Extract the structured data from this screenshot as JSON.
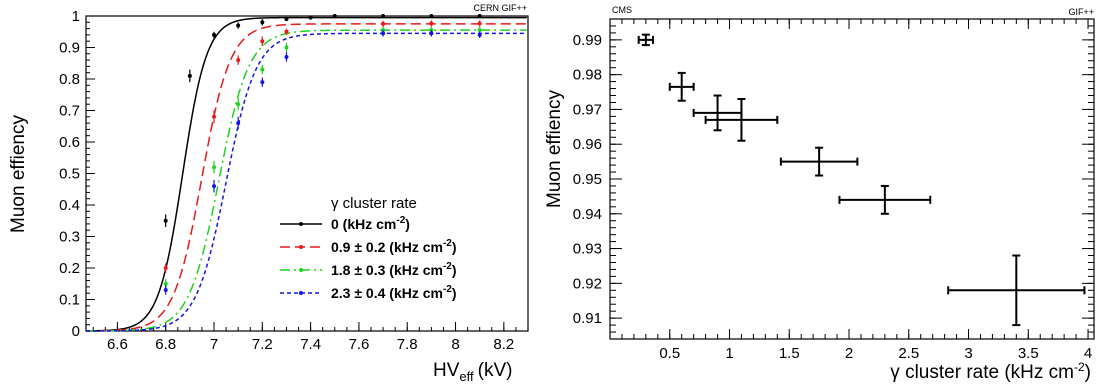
{
  "chart_data": [
    {
      "type": "line",
      "corner_label": "CERN GIF++",
      "xlabel_main": "HV",
      "xlabel_sub": "eff",
      "xlabel_unit": "(kV)",
      "ylabel": "Muon effiency",
      "xlim": [
        6.47,
        8.3
      ],
      "ylim": [
        0,
        1
      ],
      "xticks": [
        "6.6",
        "6.8",
        "7",
        "7.2",
        "7.4",
        "7.6",
        "7.8",
        "8",
        "8.2"
      ],
      "yticks": [
        "0",
        "0.1",
        "0.2",
        "0.3",
        "0.4",
        "0.5",
        "0.6",
        "0.7",
        "0.8",
        "0.9",
        "1"
      ],
      "grid": false,
      "legend": {
        "placement": "bottom-right",
        "title": "γ cluster rate",
        "entries": [
          {
            "text": "0 (kHz cm",
            "sup": "-2",
            "close": ")"
          },
          {
            "text": "0.9 ± 0.2 (kHz cm",
            "sup": "-2",
            "close": ")"
          },
          {
            "text": "1.8 ± 0.3 (kHz cm",
            "sup": "-2",
            "close": ")"
          },
          {
            "text": "2.3 ± 0.4 (kHz cm",
            "sup": "-2",
            "close": ")"
          }
        ]
      },
      "series": [
        {
          "color": "#000000",
          "dash": "",
          "plateau": 0.995,
          "hv50": 6.87,
          "lambda": 20,
          "x": [
            6.8,
            6.9,
            7.0,
            7.1,
            7.2,
            7.3,
            7.4,
            7.5,
            7.7,
            7.9,
            8.1
          ],
          "y": [
            0.35,
            0.81,
            0.94,
            0.97,
            0.98,
            0.99,
            0.995,
            1.0,
            1.0,
            1.0,
            1.0
          ],
          "err": [
            0.02,
            0.02,
            0.01,
            0.01,
            0.01,
            0.005,
            0.005,
            0.005,
            0.005,
            0.005,
            0.005
          ]
        },
        {
          "color": "#e8191a",
          "dash": "10 5",
          "plateau": 0.975,
          "hv50": 6.95,
          "lambda": 17,
          "x": [
            6.8,
            7.0,
            7.1,
            7.2,
            7.3,
            7.7,
            7.9,
            8.1
          ],
          "y": [
            0.2,
            0.68,
            0.86,
            0.92,
            0.95,
            0.975,
            0.976,
            0.976
          ],
          "err": [
            0.015,
            0.02,
            0.015,
            0.015,
            0.01,
            0.01,
            0.01,
            0.01
          ]
        },
        {
          "color": "#1fd21f",
          "dash": "10 4 2 4",
          "plateau": 0.955,
          "hv50": 7.02,
          "lambda": 16,
          "x": [
            6.8,
            7.0,
            7.1,
            7.2,
            7.3,
            7.7,
            7.9,
            8.1
          ],
          "y": [
            0.15,
            0.52,
            0.72,
            0.83,
            0.9,
            0.955,
            0.955,
            0.955
          ],
          "err": [
            0.015,
            0.02,
            0.02,
            0.015,
            0.015,
            0.01,
            0.01,
            0.01
          ]
        },
        {
          "color": "#1515e6",
          "dash": "4 3",
          "plateau": 0.945,
          "hv50": 7.05,
          "lambda": 16,
          "x": [
            6.8,
            7.0,
            7.1,
            7.2,
            7.3,
            7.7,
            7.9,
            8.1
          ],
          "y": [
            0.13,
            0.46,
            0.66,
            0.79,
            0.87,
            0.945,
            0.945,
            0.94
          ],
          "err": [
            0.015,
            0.02,
            0.02,
            0.015,
            0.015,
            0.01,
            0.01,
            0.01
          ]
        }
      ]
    },
    {
      "type": "scatter",
      "corner_left": "CMS",
      "corner_right": "GIF++",
      "xlabel_main": "γ cluster rate (kHz cm",
      "xlabel_sup": "-2",
      "xlabel_close": ")",
      "ylabel": "Muon effiency",
      "xlim": [
        0,
        4.05
      ],
      "ylim": [
        0.904,
        0.996
      ],
      "xticks": [
        {
          "v": 0.5,
          "label": "0.5"
        },
        {
          "v": 1,
          "label": "1"
        },
        {
          "v": 1.5,
          "label": "1.5"
        },
        {
          "v": 2,
          "label": "2"
        },
        {
          "v": 2.5,
          "label": "2.5"
        },
        {
          "v": 3,
          "label": "3"
        },
        {
          "v": 3.5,
          "label": "3.5"
        },
        {
          "v": 4,
          "label": "4"
        }
      ],
      "yticks": [
        {
          "v": 0.91,
          "label": "0.91"
        },
        {
          "v": 0.92,
          "label": "0.92"
        },
        {
          "v": 0.93,
          "label": "0.93"
        },
        {
          "v": 0.94,
          "label": "0.94"
        },
        {
          "v": 0.95,
          "label": "0.95"
        },
        {
          "v": 0.96,
          "label": "0.96"
        },
        {
          "v": 0.97,
          "label": "0.97"
        },
        {
          "v": 0.98,
          "label": "0.98"
        },
        {
          "v": 0.99,
          "label": "0.99"
        }
      ],
      "grid": false,
      "points": [
        {
          "x": 0.3,
          "y": 0.99,
          "xerr": 0.06,
          "yerr": 0.0015
        },
        {
          "x": 0.6,
          "y": 0.9765,
          "xerr": 0.1,
          "yerr": 0.004
        },
        {
          "x": 0.9,
          "y": 0.969,
          "xerr": 0.2,
          "yerr": 0.005
        },
        {
          "x": 1.1,
          "y": 0.967,
          "xerr": 0.3,
          "yerr": 0.006
        },
        {
          "x": 1.75,
          "y": 0.955,
          "xerr": 0.32,
          "yerr": 0.004
        },
        {
          "x": 2.3,
          "y": 0.944,
          "xerr": 0.38,
          "yerr": 0.004
        },
        {
          "x": 3.4,
          "y": 0.918,
          "xerr": 0.57,
          "yerr": 0.01
        }
      ]
    }
  ]
}
